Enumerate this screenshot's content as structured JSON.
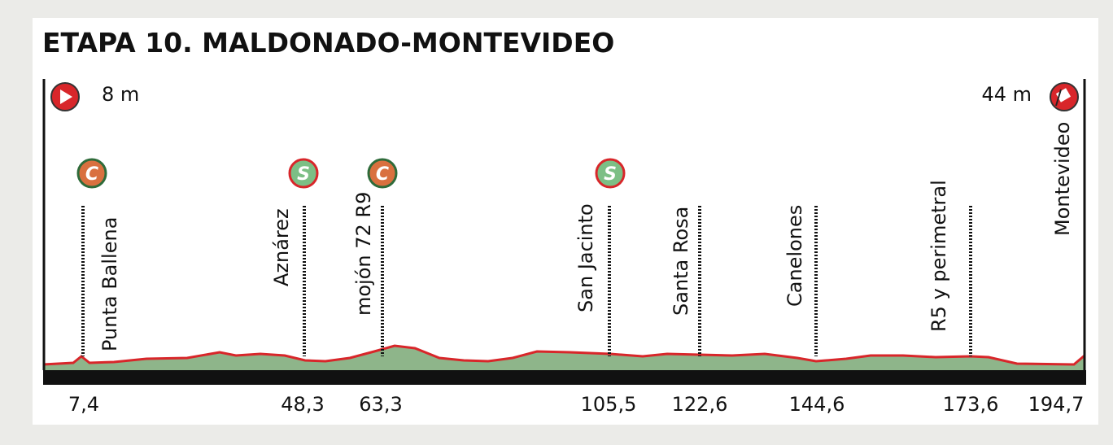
{
  "title": "ETAPA 10. MALDONADO-MONTEVIDEO",
  "start": {
    "elevation": "8 m"
  },
  "finish": {
    "elevation": "44 m"
  },
  "points": [
    {
      "name": "Punta Ballena",
      "km": "7,4",
      "icon": "C"
    },
    {
      "name": "Aznárez",
      "km": "48,3",
      "icon": "S"
    },
    {
      "name": "mojón 72 R9",
      "km": "63,3",
      "icon": "C"
    },
    {
      "name": "San Jacinto",
      "km": "105,5",
      "icon": "S"
    },
    {
      "name": "Santa Rosa",
      "km": "122,6"
    },
    {
      "name": "Canelones",
      "km": "144,6"
    },
    {
      "name": "R5 y perimetral",
      "km": "173,6"
    },
    {
      "name": "Montevideo",
      "km": "194,7"
    }
  ]
}
